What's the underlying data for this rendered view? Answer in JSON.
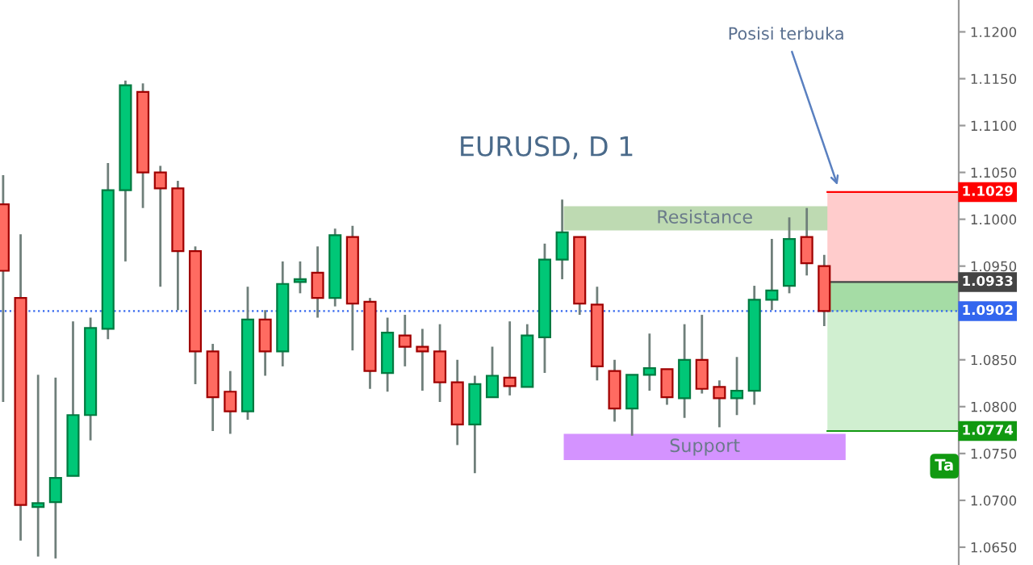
{
  "chart_data": {
    "type": "candlestick",
    "title": "EURUSD, D 1",
    "categories": [
      null,
      null,
      null,
      null,
      null,
      null,
      null,
      null,
      null,
      null,
      null,
      null,
      null,
      null,
      null,
      null,
      null,
      null,
      null,
      null,
      null,
      null,
      null,
      null,
      null,
      null,
      null,
      null,
      null,
      null,
      null,
      null,
      null,
      null,
      null,
      null,
      null,
      null,
      null,
      null,
      null,
      null,
      null,
      null,
      null,
      null,
      null,
      null,
      null,
      null,
      null,
      null,
      null,
      null,
      null
    ],
    "ohlc": [
      [
        1.1016,
        1.1047,
        1.0805,
        1.0945
      ],
      [
        1.0916,
        1.0984,
        1.0657,
        1.0695
      ],
      [
        1.0693,
        1.0834,
        1.064,
        1.0697
      ],
      [
        1.0698,
        1.0831,
        1.0638,
        1.0724
      ],
      [
        1.0726,
        1.0891,
        1.0726,
        1.0791
      ],
      [
        1.0791,
        1.0895,
        1.0764,
        1.0884
      ],
      [
        1.0883,
        1.106,
        1.0872,
        1.1031
      ],
      [
        1.1031,
        1.1148,
        1.0955,
        1.1143
      ],
      [
        1.1136,
        1.1145,
        1.1012,
        1.105
      ],
      [
        1.105,
        1.1057,
        1.0928,
        1.1033
      ],
      [
        1.1033,
        1.1041,
        1.0903,
        1.0966
      ],
      [
        1.0966,
        1.0971,
        1.0824,
        1.0859
      ],
      [
        1.0859,
        1.0867,
        1.0774,
        1.081
      ],
      [
        1.0816,
        1.0838,
        1.0771,
        1.0795
      ],
      [
        1.0795,
        1.0928,
        1.0786,
        1.0893
      ],
      [
        1.0893,
        1.0903,
        1.0833,
        1.0859
      ],
      [
        1.0859,
        1.0955,
        1.0843,
        1.0931
      ],
      [
        1.0933,
        1.0955,
        1.0921,
        1.0936
      ],
      [
        1.0943,
        1.0971,
        1.0895,
        1.0916
      ],
      [
        1.0916,
        1.099,
        1.0907,
        1.0983
      ],
      [
        1.0981,
        1.0993,
        1.086,
        1.091
      ],
      [
        1.0912,
        1.0916,
        1.0819,
        1.0838
      ],
      [
        1.0836,
        1.0895,
        1.0816,
        1.0879
      ],
      [
        1.0876,
        1.0898,
        1.0843,
        1.0864
      ],
      [
        1.0864,
        1.0883,
        1.0817,
        1.0859
      ],
      [
        1.0859,
        1.0888,
        1.0805,
        1.0826
      ],
      [
        1.0826,
        1.085,
        1.0759,
        1.0781
      ],
      [
        1.0781,
        1.0833,
        1.0729,
        1.0824
      ],
      [
        1.081,
        1.0864,
        1.081,
        1.0833
      ],
      [
        1.0831,
        1.0891,
        1.0812,
        1.0822
      ],
      [
        1.0821,
        1.0888,
        1.0821,
        1.0876
      ],
      [
        1.0874,
        1.0974,
        1.0836,
        1.0957
      ],
      [
        1.0957,
        1.1021,
        1.0936,
        1.0986
      ],
      [
        1.0981,
        1.0981,
        1.0898,
        1.091
      ],
      [
        1.0909,
        1.0928,
        1.0828,
        1.0843
      ],
      [
        1.0838,
        1.085,
        1.0784,
        1.0798
      ],
      [
        1.0798,
        1.0834,
        1.0769,
        1.0834
      ],
      [
        1.0834,
        1.0878,
        1.0817,
        1.0841
      ],
      [
        1.084,
        1.084,
        1.0802,
        1.081
      ],
      [
        1.0809,
        1.0888,
        1.0788,
        1.085
      ],
      [
        1.085,
        1.0898,
        1.0814,
        1.0819
      ],
      [
        1.0821,
        1.0828,
        1.0778,
        1.0809
      ],
      [
        1.0809,
        1.0853,
        1.0791,
        1.0817
      ],
      [
        1.0817,
        1.0929,
        1.0802,
        1.0914
      ],
      [
        1.0914,
        1.0979,
        1.0903,
        1.0924
      ],
      [
        1.0929,
        1.1002,
        1.0921,
        1.0979
      ],
      [
        1.0981,
        1.1012,
        1.094,
        1.0953
      ],
      [
        1.095,
        1.0962,
        1.0886,
        1.0902
      ],
      null,
      null,
      null,
      null,
      null,
      null,
      null
    ],
    "colors": [
      "#ff6b61",
      "#ff6b61",
      "#00c777",
      "#00c777",
      "#00c777",
      "#00c777",
      "#00c777",
      "#00c777",
      "#ff6b61",
      "#ff6b61",
      "#ff6b61",
      "#ff6b61",
      "#ff6b61",
      "#ff6b61",
      "#00c777",
      "#ff6b61",
      "#00c777",
      "#00c777",
      "#ff6b61",
      "#00c777",
      "#ff6b61",
      "#ff6b61",
      "#00c777",
      "#ff6b61",
      "#ff6b61",
      "#ff6b61",
      "#ff6b61",
      "#00c777",
      "#00c777",
      "#ff6b61",
      "#00c777",
      "#00c777",
      "#00c777",
      "#ff6b61",
      "#ff6b61",
      "#ff6b61",
      "#00c777",
      "#00c777",
      "#ff6b61",
      "#00c777",
      "#ff6b61",
      "#ff6b61",
      "#00c777",
      "#00c777",
      "#00c777",
      "#00c777",
      "#ff6b61",
      "#ff6b61",
      null,
      null,
      null,
      null,
      null,
      null,
      null
    ],
    "ylim": [
      1.0631,
      1.1234
    ],
    "yticks": [
      {
        "value": 1.065,
        "label": "1.0650"
      },
      {
        "value": 1.07,
        "label": "1.0700"
      },
      {
        "value": 1.075,
        "label": "1.0750"
      },
      {
        "value": 1.08,
        "label": "1.0800"
      },
      {
        "value": 1.085,
        "label": "1.0850"
      },
      {
        "value": 1.095,
        "label": "1.0950"
      },
      {
        "value": 1.1,
        "label": "1.1000"
      },
      {
        "value": 1.105,
        "label": "1.1050"
      },
      {
        "value": 1.11,
        "label": "1.1100"
      },
      {
        "value": 1.115,
        "label": "1.1150"
      },
      {
        "value": 1.12,
        "label": "1.1200"
      }
    ],
    "tick_labels": "y",
    "grid": false,
    "bands": [
      {
        "axis": "y",
        "from": 1.0988,
        "to": 1.1014,
        "label": "Resistance",
        "color": "#b3d4a5"
      },
      {
        "axis": "y",
        "from": 1.0743,
        "to": 1.0771,
        "label": "Support",
        "color": "#cc80ff"
      },
      {
        "axis": "y",
        "from": 1.0933,
        "to": 1.1029,
        "color": "#ffcccc"
      },
      {
        "axis": "y",
        "from": 1.0774,
        "to": 1.0933,
        "color": "#d0efd0"
      },
      {
        "axis": "y",
        "from": 1.0902,
        "to": 1.0933,
        "color": "#a5dca5"
      }
    ],
    "ref_lines": [
      {
        "axis": "y",
        "value": 1.1029,
        "label": "1.1029",
        "color": "#ff0000"
      },
      {
        "axis": "y",
        "value": 1.0933,
        "label": "1.0933",
        "color": "#444444"
      },
      {
        "axis": "y",
        "value": 1.0902,
        "label": "1.0902",
        "color": "#3366ee",
        "line_style": "dotted"
      },
      {
        "axis": "y",
        "value": 1.0774,
        "label": "1.0774",
        "color": "#119911"
      }
    ],
    "annotations": [
      "Posisi terbuka",
      "Ta"
    ]
  }
}
